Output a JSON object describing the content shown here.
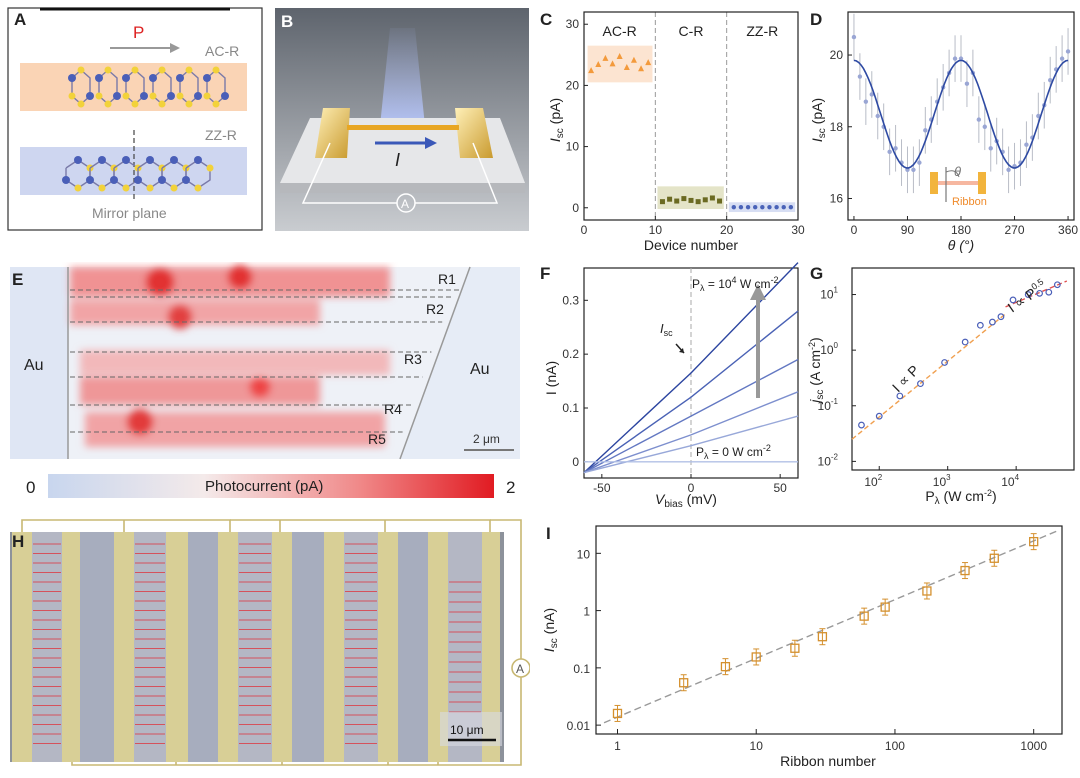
{
  "panels": {
    "A": {
      "label": "A",
      "p_label": "P",
      "ac_label": "AC-R",
      "zz_label": "ZZ-R",
      "mirror_label": "Mirror plane"
    },
    "B": {
      "label": "B",
      "current_label": "I",
      "meter_label": "A"
    },
    "C": {
      "label": "C"
    },
    "D": {
      "label": "D",
      "theta_label": "θ",
      "ribbon_label": "Ribbon"
    },
    "E": {
      "label": "E",
      "au_left": "Au",
      "au_right": "Au",
      "ribbons": [
        "R1",
        "R2",
        "R3",
        "R4",
        "R5"
      ],
      "scalebar": "2 μm",
      "colorbar": {
        "min": "0",
        "max": "2",
        "label": "Photocurrent (pA)",
        "color_low": "#c8d6ee",
        "color_high": "#e11b22"
      }
    },
    "F": {
      "label": "F",
      "label_top": "P",
      "label_top_sub": "λ",
      "label_top_rest": " = 10",
      "label_top_exp": "4",
      "label_top_unit": " W cm",
      "label_top_unit_exp": "-2",
      "label_bottom": "P",
      "label_bottom_sub": "λ",
      "label_bottom_rest": " = 0 W cm",
      "label_bottom_exp": "-2",
      "isc_label": "I",
      "isc_sub": "sc"
    },
    "G": {
      "label": "G",
      "ann1": "I ∝ P",
      "ann2": "I ∝ P",
      "ann2_exp": "0.5"
    },
    "H": {
      "label": "H",
      "meter_label": "A",
      "scalebar": "10 μm"
    },
    "I": {
      "label": "I"
    }
  },
  "chart_data": [
    {
      "id": "C",
      "type": "scatter",
      "xlabel": "Device number",
      "ylabel": "I",
      "ylabel_sub": "sc",
      "ylabel_unit": " (pA)",
      "xlim": [
        0,
        30
      ],
      "ylim": [
        -2,
        32
      ],
      "xticks": [
        "0",
        "10",
        "20",
        "30"
      ],
      "yticks": [
        "0",
        "10",
        "20",
        "30"
      ],
      "regions": [
        "AC-R",
        "C-R",
        "ZZ-R"
      ],
      "region_colors": [
        "#f39a3c",
        "#8c8a3a",
        "#4a63b8"
      ],
      "series": [
        {
          "name": "AC-R",
          "x": [
            1,
            2,
            3,
            4,
            5,
            6,
            7,
            8,
            9
          ],
          "y": [
            22.5,
            23.5,
            24.5,
            23.6,
            24.8,
            23.0,
            24.2,
            22.8,
            23.8
          ]
        },
        {
          "name": "C-R",
          "x": [
            11,
            12,
            13,
            14,
            15,
            16,
            17,
            18,
            19
          ],
          "y": [
            1.0,
            1.4,
            1.1,
            1.5,
            1.2,
            1.0,
            1.3,
            1.6,
            1.1
          ]
        },
        {
          "name": "ZZ-R",
          "x": [
            21,
            22,
            23,
            24,
            25,
            26,
            27,
            28,
            29
          ],
          "y": [
            0.1,
            0.1,
            0.1,
            0.1,
            0.1,
            0.1,
            0.1,
            0.1,
            0.1
          ]
        }
      ]
    },
    {
      "id": "D",
      "type": "scatter",
      "xlabel": "θ (°)",
      "ylabel": "I",
      "ylabel_sub": "sc",
      "ylabel_unit": " (pA)",
      "xlim": [
        -10,
        370
      ],
      "ylim": [
        15.4,
        21.2
      ],
      "xticks": [
        "0",
        "90",
        "180",
        "270",
        "360"
      ],
      "yticks": [
        "16",
        "18",
        "20"
      ],
      "points": {
        "x": [
          0,
          10,
          20,
          30,
          40,
          50,
          60,
          70,
          80,
          90,
          100,
          110,
          120,
          130,
          140,
          150,
          160,
          170,
          180,
          190,
          200,
          210,
          220,
          230,
          240,
          250,
          260,
          270,
          280,
          290,
          300,
          310,
          320,
          330,
          340,
          350,
          360
        ],
        "y": [
          20.5,
          19.4,
          18.7,
          18.9,
          18.3,
          18.0,
          17.3,
          17.4,
          17.0,
          16.8,
          16.8,
          17.0,
          17.9,
          18.2,
          18.7,
          19.1,
          19.5,
          19.9,
          19.9,
          19.2,
          19.5,
          18.2,
          18.0,
          17.4,
          17.6,
          17.3,
          16.8,
          16.9,
          17.0,
          17.5,
          17.7,
          18.3,
          18.6,
          19.3,
          19.6,
          19.9,
          20.1
        ]
      },
      "fit": {
        "mean": 18.35,
        "amplitude": 1.5
      }
    },
    {
      "id": "F",
      "type": "line",
      "xlabel": "V",
      "xlabel_sub": "bias",
      "xlabel_unit": " (mV)",
      "ylabel": "I (nA)",
      "xlim": [
        -60,
        60
      ],
      "ylim": [
        -0.03,
        0.36
      ],
      "xticks": [
        "-50",
        "0",
        "50"
      ],
      "yticks": [
        "0",
        "0.1",
        "0.2",
        "0.3"
      ],
      "series": [
        {
          "name": "10^4",
          "x": [
            -60,
            0,
            60
          ],
          "y": [
            -0.02,
            0.165,
            0.37
          ]
        },
        {
          "name": "p5",
          "x": [
            -60,
            0,
            60
          ],
          "y": [
            -0.02,
            0.12,
            0.28
          ]
        },
        {
          "name": "p4",
          "x": [
            -60,
            0,
            60
          ],
          "y": [
            -0.02,
            0.085,
            0.19
          ]
        },
        {
          "name": "p3",
          "x": [
            -60,
            0,
            60
          ],
          "y": [
            -0.02,
            0.05,
            0.13
          ]
        },
        {
          "name": "p2",
          "x": [
            -60,
            0,
            60
          ],
          "y": [
            -0.02,
            0.03,
            0.085
          ]
        },
        {
          "name": "0",
          "x": [
            -60,
            0,
            60
          ],
          "y": [
            0,
            0,
            0
          ]
        }
      ]
    },
    {
      "id": "G",
      "type": "scatter",
      "xlabel": "P",
      "xlabel_sub": "λ",
      "xlabel_unit": " (W cm",
      "xlabel_exp": "-2",
      "xlabel_end": ")",
      "ylabel": "j",
      "ylabel_sub": "sc",
      "ylabel_unit": " (A cm",
      "ylabel_exp": "-2",
      "ylabel_end": ")",
      "xscale": "log",
      "yscale": "log",
      "xlim": [
        40,
        70000
      ],
      "ylim": [
        0.007,
        30
      ],
      "xticks": [
        "10",
        "10",
        "10"
      ],
      "xtick_exps": [
        "2",
        "3",
        "4"
      ],
      "yticks": [
        "10",
        "10",
        "10",
        "10"
      ],
      "ytick_exps": [
        "-2",
        "-1",
        "0",
        "1"
      ],
      "points": {
        "x": [
          55,
          100,
          200,
          400,
          900,
          1800,
          3000,
          4500,
          6000,
          9000,
          15000,
          22000,
          30000,
          40000
        ],
        "y": [
          0.045,
          0.065,
          0.15,
          0.25,
          0.6,
          1.4,
          2.8,
          3.2,
          4.0,
          8.0,
          10.0,
          10.5,
          11.0,
          15.0
        ]
      },
      "fit_linear": {
        "x": [
          40,
          7000
        ],
        "y": [
          0.025,
          4.5
        ]
      },
      "fit_sqrt": {
        "x": [
          7000,
          55000
        ],
        "y": [
          6.0,
          17.5
        ]
      }
    },
    {
      "id": "I",
      "type": "scatter",
      "xlabel": "Ribbon number",
      "ylabel": "I",
      "ylabel_sub": "sc",
      "ylabel_unit": " (nA)",
      "xscale": "log",
      "yscale": "log",
      "xlim": [
        0.7,
        1600
      ],
      "ylim": [
        0.007,
        30
      ],
      "xticks": [
        "1",
        "10",
        "100",
        "1000"
      ],
      "yticks": [
        "0.01",
        "0.1",
        "1",
        "10"
      ],
      "points": {
        "x": [
          1,
          3,
          6,
          10,
          19,
          30,
          60,
          85,
          170,
          320,
          520,
          1000
        ],
        "y": [
          0.016,
          0.055,
          0.105,
          0.155,
          0.22,
          0.35,
          0.8,
          1.15,
          2.2,
          5.0,
          8.2,
          16.0
        ]
      },
      "fit": {
        "x": [
          0.8,
          1500
        ],
        "y": [
          0.011,
          25.0
        ]
      }
    }
  ]
}
